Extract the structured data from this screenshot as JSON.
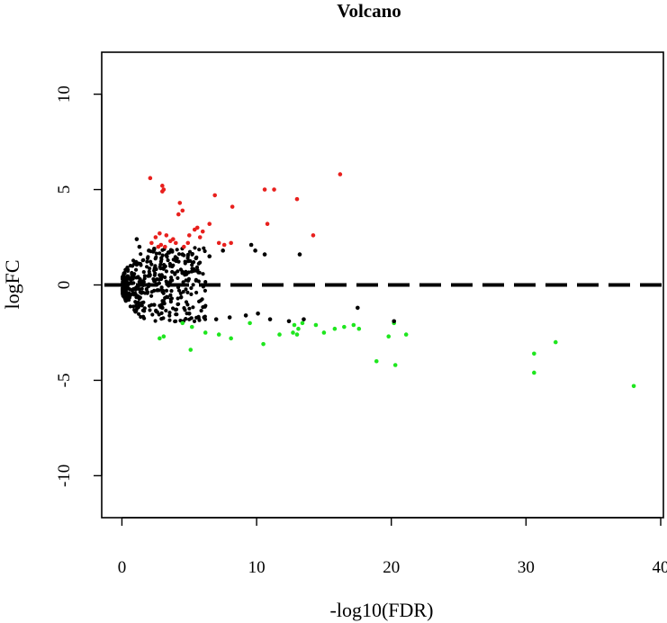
{
  "chart_data": {
    "type": "scatter",
    "title": "Volcano",
    "xlabel": "-log10(FDR)",
    "ylabel": "logFC",
    "xlim": [
      -1.5,
      40.2
    ],
    "ylim": [
      -12.2,
      12.2
    ],
    "xticks": [
      0,
      10,
      20,
      30,
      40
    ],
    "yticks": [
      -10,
      -5,
      0,
      5,
      10
    ],
    "xtick_labels": [
      "0",
      "10",
      "20",
      "30",
      "40"
    ],
    "ytick_labels": [
      "-10",
      "-5",
      "0",
      "5",
      "10"
    ],
    "reference_line": {
      "y": 0,
      "style": "dashed",
      "color": "#000000"
    },
    "grid": false,
    "colors": {
      "up": "#e8201d",
      "down": "#1ee61e",
      "not_significant": "#000000"
    },
    "series": [
      {
        "color": "#e8201d",
        "points": [
          [
            2.1,
            5.6
          ],
          [
            3.0,
            5.2
          ],
          [
            3.1,
            5.0
          ],
          [
            3.0,
            4.9
          ],
          [
            4.3,
            4.3
          ],
          [
            4.2,
            3.7
          ],
          [
            4.5,
            3.9
          ],
          [
            6.9,
            4.7
          ],
          [
            8.2,
            4.1
          ],
          [
            10.6,
            5.0
          ],
          [
            11.3,
            5.0
          ],
          [
            13.0,
            4.5
          ],
          [
            16.2,
            5.8
          ],
          [
            10.8,
            3.2
          ],
          [
            14.2,
            2.6
          ],
          [
            2.5,
            2.5
          ],
          [
            2.8,
            2.7
          ],
          [
            3.3,
            2.6
          ],
          [
            3.6,
            2.3
          ],
          [
            4.0,
            2.2
          ],
          [
            5.0,
            2.6
          ],
          [
            5.4,
            2.9
          ],
          [
            5.6,
            3.0
          ],
          [
            6.0,
            2.8
          ],
          [
            6.5,
            3.2
          ],
          [
            7.2,
            2.2
          ],
          [
            7.6,
            2.1
          ],
          [
            8.1,
            2.2
          ],
          [
            2.9,
            2.1
          ],
          [
            3.2,
            2.0
          ],
          [
            4.6,
            2.0
          ],
          [
            2.2,
            2.2
          ],
          [
            3.8,
            2.4
          ],
          [
            5.8,
            2.5
          ],
          [
            2.7,
            2.0
          ],
          [
            4.9,
            2.2
          ]
        ]
      },
      {
        "color": "#1ee61e",
        "points": [
          [
            2.8,
            -2.8
          ],
          [
            3.1,
            -2.7
          ],
          [
            4.5,
            -2.0
          ],
          [
            5.2,
            -2.2
          ],
          [
            5.1,
            -3.4
          ],
          [
            7.2,
            -2.6
          ],
          [
            8.1,
            -2.8
          ],
          [
            9.5,
            -2.0
          ],
          [
            10.5,
            -3.1
          ],
          [
            11.7,
            -2.6
          ],
          [
            12.7,
            -2.5
          ],
          [
            12.8,
            -2.1
          ],
          [
            13.1,
            -2.3
          ],
          [
            13.4,
            -2.0
          ],
          [
            14.4,
            -2.1
          ],
          [
            15.0,
            -2.5
          ],
          [
            15.8,
            -2.3
          ],
          [
            16.5,
            -2.2
          ],
          [
            17.2,
            -2.1
          ],
          [
            17.6,
            -2.3
          ],
          [
            18.9,
            -4.0
          ],
          [
            19.8,
            -2.7
          ],
          [
            20.2,
            -2.0
          ],
          [
            20.3,
            -4.2
          ],
          [
            21.1,
            -2.6
          ],
          [
            30.6,
            -3.6
          ],
          [
            30.6,
            -4.6
          ],
          [
            32.2,
            -3.0
          ],
          [
            38.0,
            -5.3
          ],
          [
            13.0,
            -2.6
          ],
          [
            6.2,
            -2.5
          ]
        ]
      },
      {
        "color": "#000000",
        "points": [
          [
            1.1,
            2.4
          ],
          [
            1.3,
            2.0
          ],
          [
            2.0,
            1.8
          ],
          [
            2.4,
            1.9
          ],
          [
            9.6,
            2.1
          ],
          [
            9.9,
            1.8
          ],
          [
            10.6,
            1.6
          ],
          [
            13.2,
            1.6
          ],
          [
            10.1,
            -1.5
          ],
          [
            11.0,
            -1.8
          ],
          [
            12.4,
            -1.9
          ],
          [
            13.5,
            -1.8
          ],
          [
            17.5,
            -1.2
          ],
          [
            20.2,
            -1.9
          ],
          [
            9.2,
            -1.6
          ],
          [
            8.0,
            -1.7
          ],
          [
            7.0,
            -1.8
          ],
          [
            6.1,
            -1.7
          ],
          [
            5.0,
            -1.5
          ],
          [
            4.0,
            -1.3
          ],
          [
            3.0,
            -1.2
          ],
          [
            7.5,
            1.8
          ],
          [
            6.5,
            1.5
          ],
          [
            5.5,
            1.4
          ],
          [
            4.5,
            1.6
          ],
          [
            3.5,
            1.7
          ]
        ]
      }
    ]
  }
}
